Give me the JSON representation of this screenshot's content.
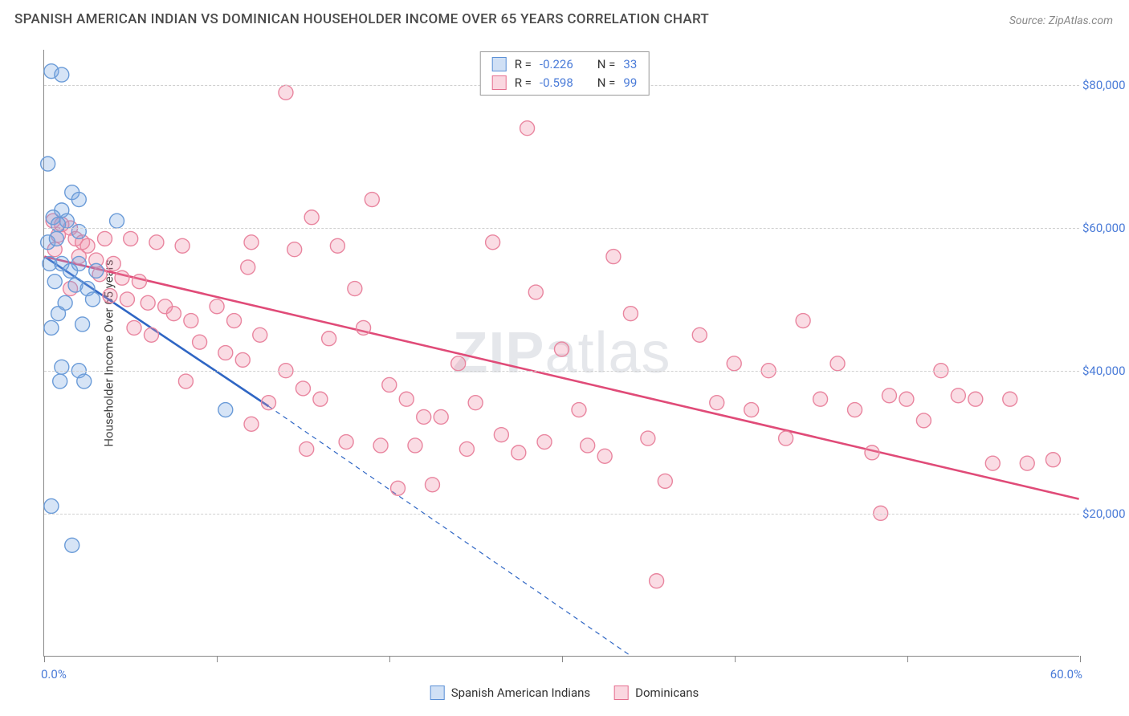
{
  "title": "SPANISH AMERICAN INDIAN VS DOMINICAN HOUSEHOLDER INCOME OVER 65 YEARS CORRELATION CHART",
  "source": "Source: ZipAtlas.com",
  "watermark": {
    "bold": "ZIP",
    "light": "atlas"
  },
  "chart": {
    "type": "scatter",
    "background_color": "#ffffff",
    "grid_color": "#d0d0d0",
    "axis_color": "#888888",
    "xlim": [
      0,
      60
    ],
    "ylim": [
      0,
      85000
    ],
    "x_ticks": [
      0,
      10,
      20,
      30,
      40,
      50,
      60
    ],
    "y_gridlines": [
      20000,
      40000,
      60000,
      80000
    ],
    "y_tick_labels": [
      "$20,000",
      "$40,000",
      "$60,000",
      "$80,000"
    ],
    "x_left_label": "0.0%",
    "x_right_label": "60.0%",
    "y_axis_title": "Householder Income Over 65 years",
    "marker_radius": 9,
    "marker_stroke_width": 1.4,
    "trend_line_width": 2.6,
    "dash_pattern": "6,5",
    "series": [
      {
        "name": "Spanish American Indians",
        "fill": "rgba(120,165,225,0.30)",
        "stroke": "#6a9bd8",
        "line_color": "#2f66c4",
        "r": -0.226,
        "n": 33,
        "trend": {
          "x1": 0,
          "y1": 56000,
          "x2": 13,
          "y2": 35000
        },
        "extrap": {
          "x1": 13,
          "y1": 35000,
          "x2": 34,
          "y2": 0
        },
        "points": [
          [
            0.4,
            82000
          ],
          [
            1.0,
            81500
          ],
          [
            0.2,
            69000
          ],
          [
            1.6,
            65000
          ],
          [
            2.0,
            64000
          ],
          [
            1.0,
            62500
          ],
          [
            0.5,
            61500
          ],
          [
            1.3,
            61000
          ],
          [
            4.2,
            61000
          ],
          [
            2.0,
            59500
          ],
          [
            0.3,
            55000
          ],
          [
            1.0,
            55000
          ],
          [
            2.0,
            55000
          ],
          [
            1.5,
            54000
          ],
          [
            3.0,
            54000
          ],
          [
            0.6,
            52500
          ],
          [
            1.8,
            52000
          ],
          [
            2.5,
            51500
          ],
          [
            1.2,
            49500
          ],
          [
            0.8,
            48000
          ],
          [
            0.4,
            46000
          ],
          [
            2.2,
            46500
          ],
          [
            0.2,
            58000
          ],
          [
            0.7,
            58500
          ],
          [
            2.8,
            50000
          ],
          [
            1.0,
            40500
          ],
          [
            2.0,
            40000
          ],
          [
            0.9,
            38500
          ],
          [
            2.3,
            38500
          ],
          [
            10.5,
            34500
          ],
          [
            0.4,
            21000
          ],
          [
            1.6,
            15500
          ],
          [
            0.8,
            60500
          ]
        ]
      },
      {
        "name": "Dominicans",
        "fill": "rgba(240,140,165,0.30)",
        "stroke": "#e9859f",
        "line_color": "#e04b78",
        "r": -0.598,
        "n": 99,
        "trend": {
          "x1": 0,
          "y1": 56000,
          "x2": 60,
          "y2": 22000
        },
        "points": [
          [
            0.5,
            61000
          ],
          [
            1.0,
            60500
          ],
          [
            1.5,
            60000
          ],
          [
            0.8,
            59000
          ],
          [
            1.8,
            58500
          ],
          [
            2.2,
            58000
          ],
          [
            0.6,
            57000
          ],
          [
            2.5,
            57500
          ],
          [
            3.5,
            58500
          ],
          [
            2.0,
            56000
          ],
          [
            3.0,
            55500
          ],
          [
            4.0,
            55000
          ],
          [
            3.2,
            53500
          ],
          [
            4.5,
            53000
          ],
          [
            5.5,
            52500
          ],
          [
            1.5,
            51500
          ],
          [
            5.0,
            58500
          ],
          [
            6.5,
            58000
          ],
          [
            8.0,
            57500
          ],
          [
            3.8,
            50500
          ],
          [
            4.8,
            50000
          ],
          [
            6.0,
            49500
          ],
          [
            7.0,
            49000
          ],
          [
            7.5,
            48000
          ],
          [
            8.5,
            47000
          ],
          [
            5.2,
            46000
          ],
          [
            6.2,
            45000
          ],
          [
            12.0,
            58000
          ],
          [
            14.0,
            79000
          ],
          [
            14.5,
            57000
          ],
          [
            10.0,
            49000
          ],
          [
            11.0,
            47000
          ],
          [
            12.5,
            45000
          ],
          [
            9.0,
            44000
          ],
          [
            10.5,
            42500
          ],
          [
            11.5,
            41500
          ],
          [
            8.2,
            38500
          ],
          [
            15.5,
            61500
          ],
          [
            17.0,
            57500
          ],
          [
            18.0,
            51500
          ],
          [
            16.5,
            44500
          ],
          [
            14.0,
            40000
          ],
          [
            15.0,
            37500
          ],
          [
            16.0,
            36000
          ],
          [
            13.0,
            35500
          ],
          [
            12.0,
            32500
          ],
          [
            19.0,
            64000
          ],
          [
            18.5,
            46000
          ],
          [
            20.0,
            38000
          ],
          [
            21.0,
            36000
          ],
          [
            22.0,
            33500
          ],
          [
            17.5,
            30000
          ],
          [
            19.5,
            29500
          ],
          [
            15.2,
            29000
          ],
          [
            28.0,
            74000
          ],
          [
            26.0,
            58000
          ],
          [
            24.0,
            41000
          ],
          [
            25.0,
            35500
          ],
          [
            23.0,
            33500
          ],
          [
            26.5,
            31000
          ],
          [
            21.5,
            29500
          ],
          [
            24.5,
            29000
          ],
          [
            22.5,
            24000
          ],
          [
            20.5,
            23500
          ],
          [
            28.5,
            51000
          ],
          [
            30.0,
            43000
          ],
          [
            31.0,
            34500
          ],
          [
            29.0,
            30000
          ],
          [
            27.5,
            28500
          ],
          [
            31.5,
            29500
          ],
          [
            33.0,
            56000
          ],
          [
            34.0,
            48000
          ],
          [
            35.0,
            30500
          ],
          [
            32.5,
            28000
          ],
          [
            36.0,
            24500
          ],
          [
            35.5,
            10500
          ],
          [
            38.0,
            45000
          ],
          [
            39.0,
            35500
          ],
          [
            40.0,
            41000
          ],
          [
            41.0,
            34500
          ],
          [
            42.0,
            40000
          ],
          [
            43.0,
            30500
          ],
          [
            44.0,
            47000
          ],
          [
            45.0,
            36000
          ],
          [
            46.0,
            41000
          ],
          [
            47.0,
            34500
          ],
          [
            48.0,
            28500
          ],
          [
            49.0,
            36500
          ],
          [
            50.0,
            36000
          ],
          [
            51.0,
            33000
          ],
          [
            52.0,
            40000
          ],
          [
            53.0,
            36500
          ],
          [
            54.0,
            36000
          ],
          [
            55.0,
            27000
          ],
          [
            56.0,
            36000
          ],
          [
            48.5,
            20000
          ],
          [
            57.0,
            27000
          ],
          [
            58.5,
            27500
          ],
          [
            11.8,
            54500
          ]
        ]
      }
    ],
    "legend_top": {
      "rows": [
        {
          "swatch": "blue",
          "r_label": "R =",
          "r_val": "-0.226",
          "n_label": "N =",
          "n_val": "33"
        },
        {
          "swatch": "pink",
          "r_label": "R =",
          "r_val": "-0.598",
          "n_label": "N =",
          "n_val": "99"
        }
      ]
    },
    "legend_bottom": [
      {
        "swatch": "blue",
        "label": "Spanish American Indians"
      },
      {
        "swatch": "pink",
        "label": "Dominicans"
      }
    ]
  }
}
